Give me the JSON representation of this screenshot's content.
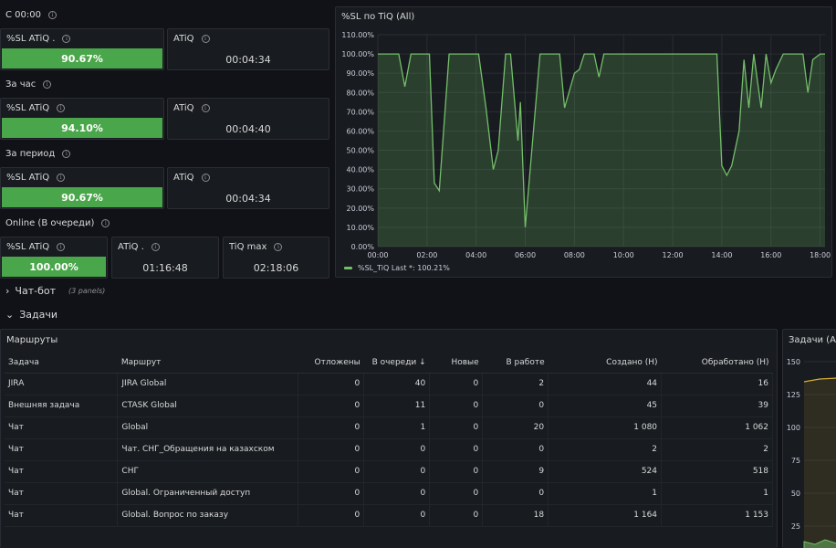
{
  "sections": {
    "since_midnight": "С 00:00",
    "per_hour": "За час",
    "per_period": "За период",
    "online": "Online (В очереди)"
  },
  "stats": {
    "midnight_sl": {
      "title": "%SL ATiQ .",
      "value": "90.67%"
    },
    "midnight_atiq": {
      "title": "ATiQ",
      "value": "00:04:34"
    },
    "hour_sl": {
      "title": "%SL ATiQ",
      "value": "94.10%"
    },
    "hour_atiq": {
      "title": "ATiQ",
      "value": "00:04:40"
    },
    "period_sl": {
      "title": "%SL ATiQ",
      "value": "90.67%"
    },
    "period_atiq": {
      "title": "ATiQ",
      "value": "00:04:34"
    },
    "online_sl": {
      "title": "%SL ATiQ",
      "value": "100.00%"
    },
    "online_atiq": {
      "title": "ATiQ .",
      "value": "01:16:48"
    },
    "online_tiqmax": {
      "title": "TiQ max",
      "value": "02:18:06"
    }
  },
  "rows": {
    "chatbot": {
      "title": "Чат-бот",
      "note": "(3 panels)"
    },
    "tasks": {
      "title": "Задачи"
    }
  },
  "routes_panel": {
    "title": "Маршруты",
    "columns": [
      "Задача",
      "Маршрут",
      "Отложены",
      "В очереди",
      "Новые",
      "В работе",
      "Создано (Н)",
      "Обработано (Н)"
    ],
    "sort_arrow": "↓",
    "rows": [
      [
        "JIRA",
        "JIRA Global",
        "0",
        "40",
        "0",
        "2",
        "44",
        "16"
      ],
      [
        "Внешняя задача",
        "CTASK Global",
        "0",
        "11",
        "0",
        "0",
        "45",
        "39"
      ],
      [
        "Чат",
        "Global",
        "0",
        "1",
        "0",
        "20",
        "1 080",
        "1 062"
      ],
      [
        "Чат",
        "Чат. СНГ_Обращения на казахском",
        "0",
        "0",
        "0",
        "0",
        "2",
        "2"
      ],
      [
        "Чат",
        "СНГ",
        "0",
        "0",
        "0",
        "9",
        "524",
        "518"
      ],
      [
        "Чат",
        "Global. Ограниченный доступ",
        "0",
        "0",
        "0",
        "0",
        "1",
        "1"
      ],
      [
        "Чат",
        "Global. Вопрос по заказу",
        "0",
        "0",
        "0",
        "18",
        "1 164",
        "1 153"
      ]
    ]
  },
  "tasks_chart": {
    "title": "Задачи (All)",
    "y_ticks": [
      "150",
      "125",
      "100",
      "75",
      "50",
      "25"
    ]
  },
  "colors": {
    "series": "#73bf69",
    "stat_green": "#4aa64a",
    "yellow": "#d4b030"
  },
  "chart_data": {
    "type": "area",
    "title": "%SL по TiQ (All)",
    "xlabel": "",
    "ylabel": "",
    "x_ticks": [
      "00:00",
      "02:00",
      "04:00",
      "06:00",
      "08:00",
      "10:00",
      "12:00",
      "14:00",
      "16:00",
      "18:00"
    ],
    "y_ticks": [
      "0.00%",
      "10.00%",
      "20.00%",
      "30.00%",
      "40.00%",
      "50.00%",
      "60.00%",
      "70.00%",
      "80.00%",
      "90.00%",
      "100.00%",
      "110.00%"
    ],
    "xlim": [
      0,
      18.2
    ],
    "ylim": [
      0,
      110
    ],
    "grid": true,
    "legend_position": "bottom-left",
    "series": [
      {
        "name": "%SL_TiQ",
        "legend": "%SL_TiQ  Last *: 100.21%",
        "x": [
          0,
          0.6,
          0.85,
          1.1,
          1.35,
          1.9,
          2.1,
          2.3,
          2.5,
          2.9,
          3.4,
          3.9,
          4.1,
          4.4,
          4.7,
          4.9,
          5.2,
          5.4,
          5.7,
          5.8,
          6.0,
          6.3,
          6.6,
          7.0,
          7.2,
          7.4,
          7.6,
          8.0,
          8.2,
          8.4,
          8.8,
          9.0,
          9.2,
          9.6,
          10.0,
          12.0,
          13.4,
          13.8,
          14.0,
          14.2,
          14.4,
          14.7,
          14.9,
          15.1,
          15.3,
          15.6,
          15.8,
          16.0,
          16.2,
          16.5,
          17.0,
          17.3,
          17.5,
          17.7,
          18.0,
          18.2
        ],
        "y": [
          100,
          100,
          100,
          83,
          100,
          100,
          100,
          33,
          29,
          100,
          100,
          100,
          100,
          72,
          40,
          50,
          100,
          100,
          55,
          75,
          10,
          55,
          100,
          100,
          100,
          100,
          72,
          90,
          92,
          100,
          100,
          88,
          100,
          100,
          100,
          100,
          100,
          100,
          42,
          37,
          42,
          60,
          97,
          72,
          100,
          72,
          100,
          85,
          92,
          100,
          100,
          100,
          80,
          97,
          100,
          100
        ]
      }
    ]
  }
}
